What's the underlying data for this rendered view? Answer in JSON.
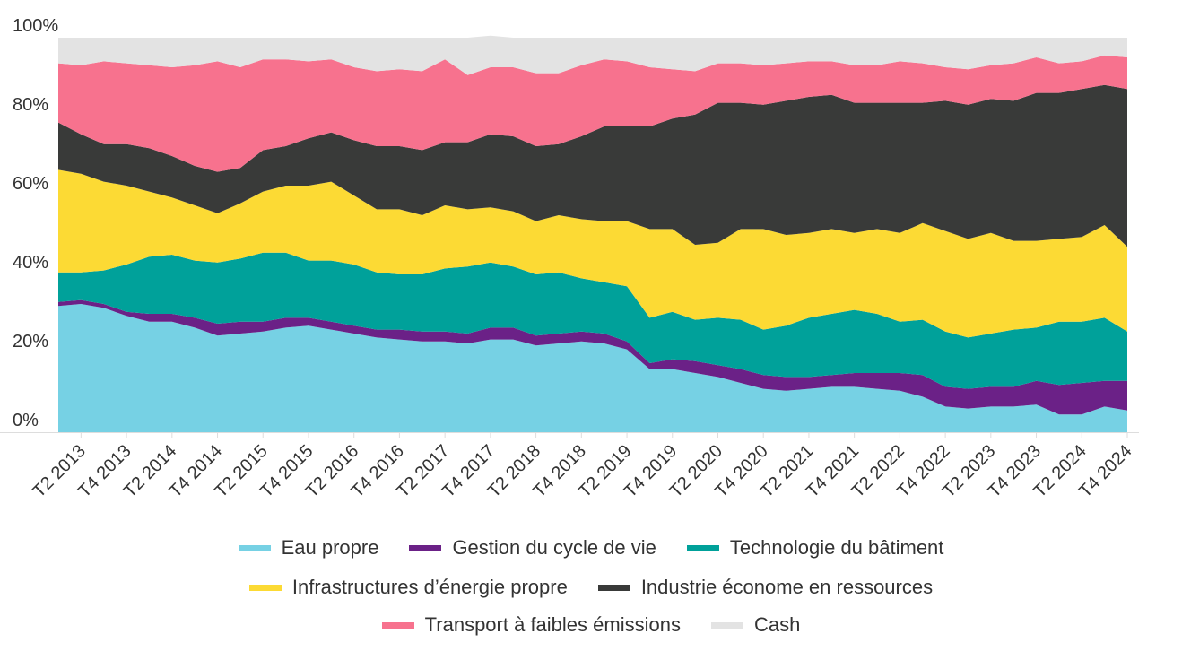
{
  "chart_data": {
    "type": "area",
    "stacked": true,
    "ylim": [
      0,
      100
    ],
    "yticks": [
      0,
      20,
      40,
      60,
      80,
      100
    ],
    "ytick_labels": [
      "0%",
      "20%",
      "40%",
      "60%",
      "80%",
      "100%"
    ],
    "grid": false,
    "legend_position": "bottom",
    "x": [
      "T1 2013",
      "T2 2013",
      "T3 2013",
      "T4 2013",
      "T1 2014",
      "T2 2014",
      "T3 2014",
      "T4 2014",
      "T1 2015",
      "T2 2015",
      "T3 2015",
      "T4 2015",
      "T1 2016",
      "T2 2016",
      "T3 2016",
      "T4 2016",
      "T1 2017",
      "T2 2017",
      "T3 2017",
      "T4 2017",
      "T1 2018",
      "T2 2018",
      "T3 2018",
      "T4 2018",
      "T1 2019",
      "T2 2019",
      "T3 2019",
      "T4 2019",
      "T1 2020",
      "T2 2020",
      "T3 2020",
      "T4 2020",
      "T1 2021",
      "T2 2021",
      "T3 2021",
      "T4 2021",
      "T1 2022",
      "T2 2022",
      "T3 2022",
      "T4 2022",
      "T1 2023",
      "T2 2023",
      "T3 2023",
      "T4 2023",
      "T1 2024",
      "T2 2024",
      "T3 2024",
      "T4 2024"
    ],
    "x_tick_labels": [
      "T2 2013",
      "T4 2013",
      "T2 2014",
      "T4 2014",
      "T2 2015",
      "T4 2015",
      "T2 2016",
      "T4 2016",
      "T2 2017",
      "T4 2017",
      "T2 2018",
      "T4 2018",
      "T2 2019",
      "T4 2019",
      "T2 2020",
      "T4 2020",
      "T2 2021",
      "T4 2021",
      "T2 2022",
      "T4 2022",
      "T2 2023",
      "T4 2023",
      "T2 2024",
      "T4 2024"
    ],
    "series": [
      {
        "name": "Eau propre",
        "color": "#76d1e4",
        "values": [
          32,
          32.5,
          31.5,
          29.5,
          28,
          28,
          26.5,
          24.5,
          25,
          25.5,
          26.5,
          27,
          26,
          25,
          24,
          23.5,
          23,
          23,
          22.5,
          23.5,
          23.5,
          22,
          22.5,
          23,
          22.5,
          21,
          16,
          16,
          15,
          14,
          12.5,
          11,
          10.5,
          11,
          11.5,
          11.5,
          11,
          10.5,
          9,
          6.5,
          6,
          6.5,
          6.5,
          7,
          4.5,
          4.5,
          6.5,
          5.5
        ]
      },
      {
        "name": "Gestion du cycle de vie",
        "color": "#6b2187",
        "values": [
          1,
          1,
          1,
          1,
          2,
          2,
          2.5,
          3,
          3,
          2.5,
          2.5,
          2,
          2,
          2,
          2,
          2.5,
          2.5,
          2.5,
          2.5,
          3,
          3,
          2.5,
          2.5,
          2.5,
          2.5,
          2,
          1.5,
          2.5,
          3,
          3,
          3.5,
          3.5,
          3.5,
          3,
          3,
          3.5,
          4,
          4.5,
          5.5,
          5,
          5,
          5,
          5,
          6,
          7.5,
          8,
          6.5,
          7.5
        ]
      },
      {
        "name": "Technologie du bâtiment",
        "color": "#00a19a",
        "values": [
          7.5,
          7,
          8.5,
          12,
          14.5,
          15,
          14.5,
          15.5,
          16,
          17.5,
          16.5,
          14.5,
          15.5,
          15.5,
          14.5,
          14,
          14.5,
          16,
          17,
          16.5,
          15.5,
          15.5,
          15.5,
          13.5,
          13,
          14,
          11.5,
          12,
          10.5,
          12,
          12.5,
          11.5,
          13,
          15,
          15.5,
          16,
          15,
          13,
          14,
          14,
          13,
          13.5,
          14.5,
          13.5,
          16,
          15.5,
          16,
          12.5
        ]
      },
      {
        "name": "Infrastructures d’énergie propre",
        "color": "#fcda34",
        "values": [
          26,
          25,
          22.5,
          20,
          16.5,
          14.5,
          14,
          12.5,
          14,
          15.5,
          17,
          19,
          20,
          17.5,
          16,
          16.5,
          15,
          16,
          14.5,
          14,
          14,
          13.5,
          14.5,
          15,
          15.5,
          16.5,
          22.5,
          21,
          19,
          19,
          23,
          25.5,
          23,
          21.5,
          21.5,
          19.5,
          21.5,
          22.5,
          24.5,
          25.5,
          25,
          25.5,
          22.5,
          22,
          21,
          21.5,
          23.5,
          21.5
        ]
      },
      {
        "name": "Industrie économe en ressources",
        "color": "#393a39",
        "values": [
          12,
          10,
          9.5,
          10.5,
          11,
          10.5,
          10,
          10.5,
          9,
          10.5,
          10,
          12,
          12.5,
          14,
          16,
          16,
          16.5,
          16,
          17,
          18.5,
          19,
          19,
          18,
          21,
          24,
          24,
          26,
          28,
          33,
          35.5,
          32,
          31.5,
          34,
          34.5,
          34,
          33,
          32,
          33,
          30.5,
          33,
          34,
          34,
          35.5,
          37.5,
          37,
          37.5,
          35.5,
          40
        ]
      },
      {
        "name": "Transport à faibles émissions",
        "color": "#f7728e",
        "values": [
          15,
          17.5,
          21,
          20.5,
          21,
          22.5,
          25.5,
          28,
          25.5,
          23,
          22,
          19.5,
          18.5,
          18.5,
          19,
          19.5,
          20,
          21,
          17,
          17,
          17.5,
          18.5,
          18,
          18,
          17,
          16.5,
          15,
          12.5,
          11,
          10,
          10,
          10,
          9.5,
          9,
          8.5,
          9.5,
          9.5,
          10.5,
          10,
          8.5,
          9,
          8.5,
          9.5,
          9,
          7.5,
          7,
          7.5,
          8
        ]
      },
      {
        "name": "Cash",
        "color": "#e3e3e3",
        "values": [
          6.5,
          7,
          6,
          6.5,
          7,
          7.5,
          7,
          6,
          7.5,
          5.5,
          5.5,
          6,
          5.5,
          7.5,
          8.5,
          8,
          8.5,
          5.5,
          9.5,
          8,
          7.5,
          9,
          9,
          7,
          5.5,
          6,
          7.5,
          8,
          8.5,
          6.5,
          6.5,
          7,
          6.5,
          6,
          6,
          7,
          7,
          6,
          6.5,
          7.5,
          8,
          7,
          6.5,
          5,
          6.5,
          6,
          4.5,
          5
        ]
      }
    ]
  }
}
